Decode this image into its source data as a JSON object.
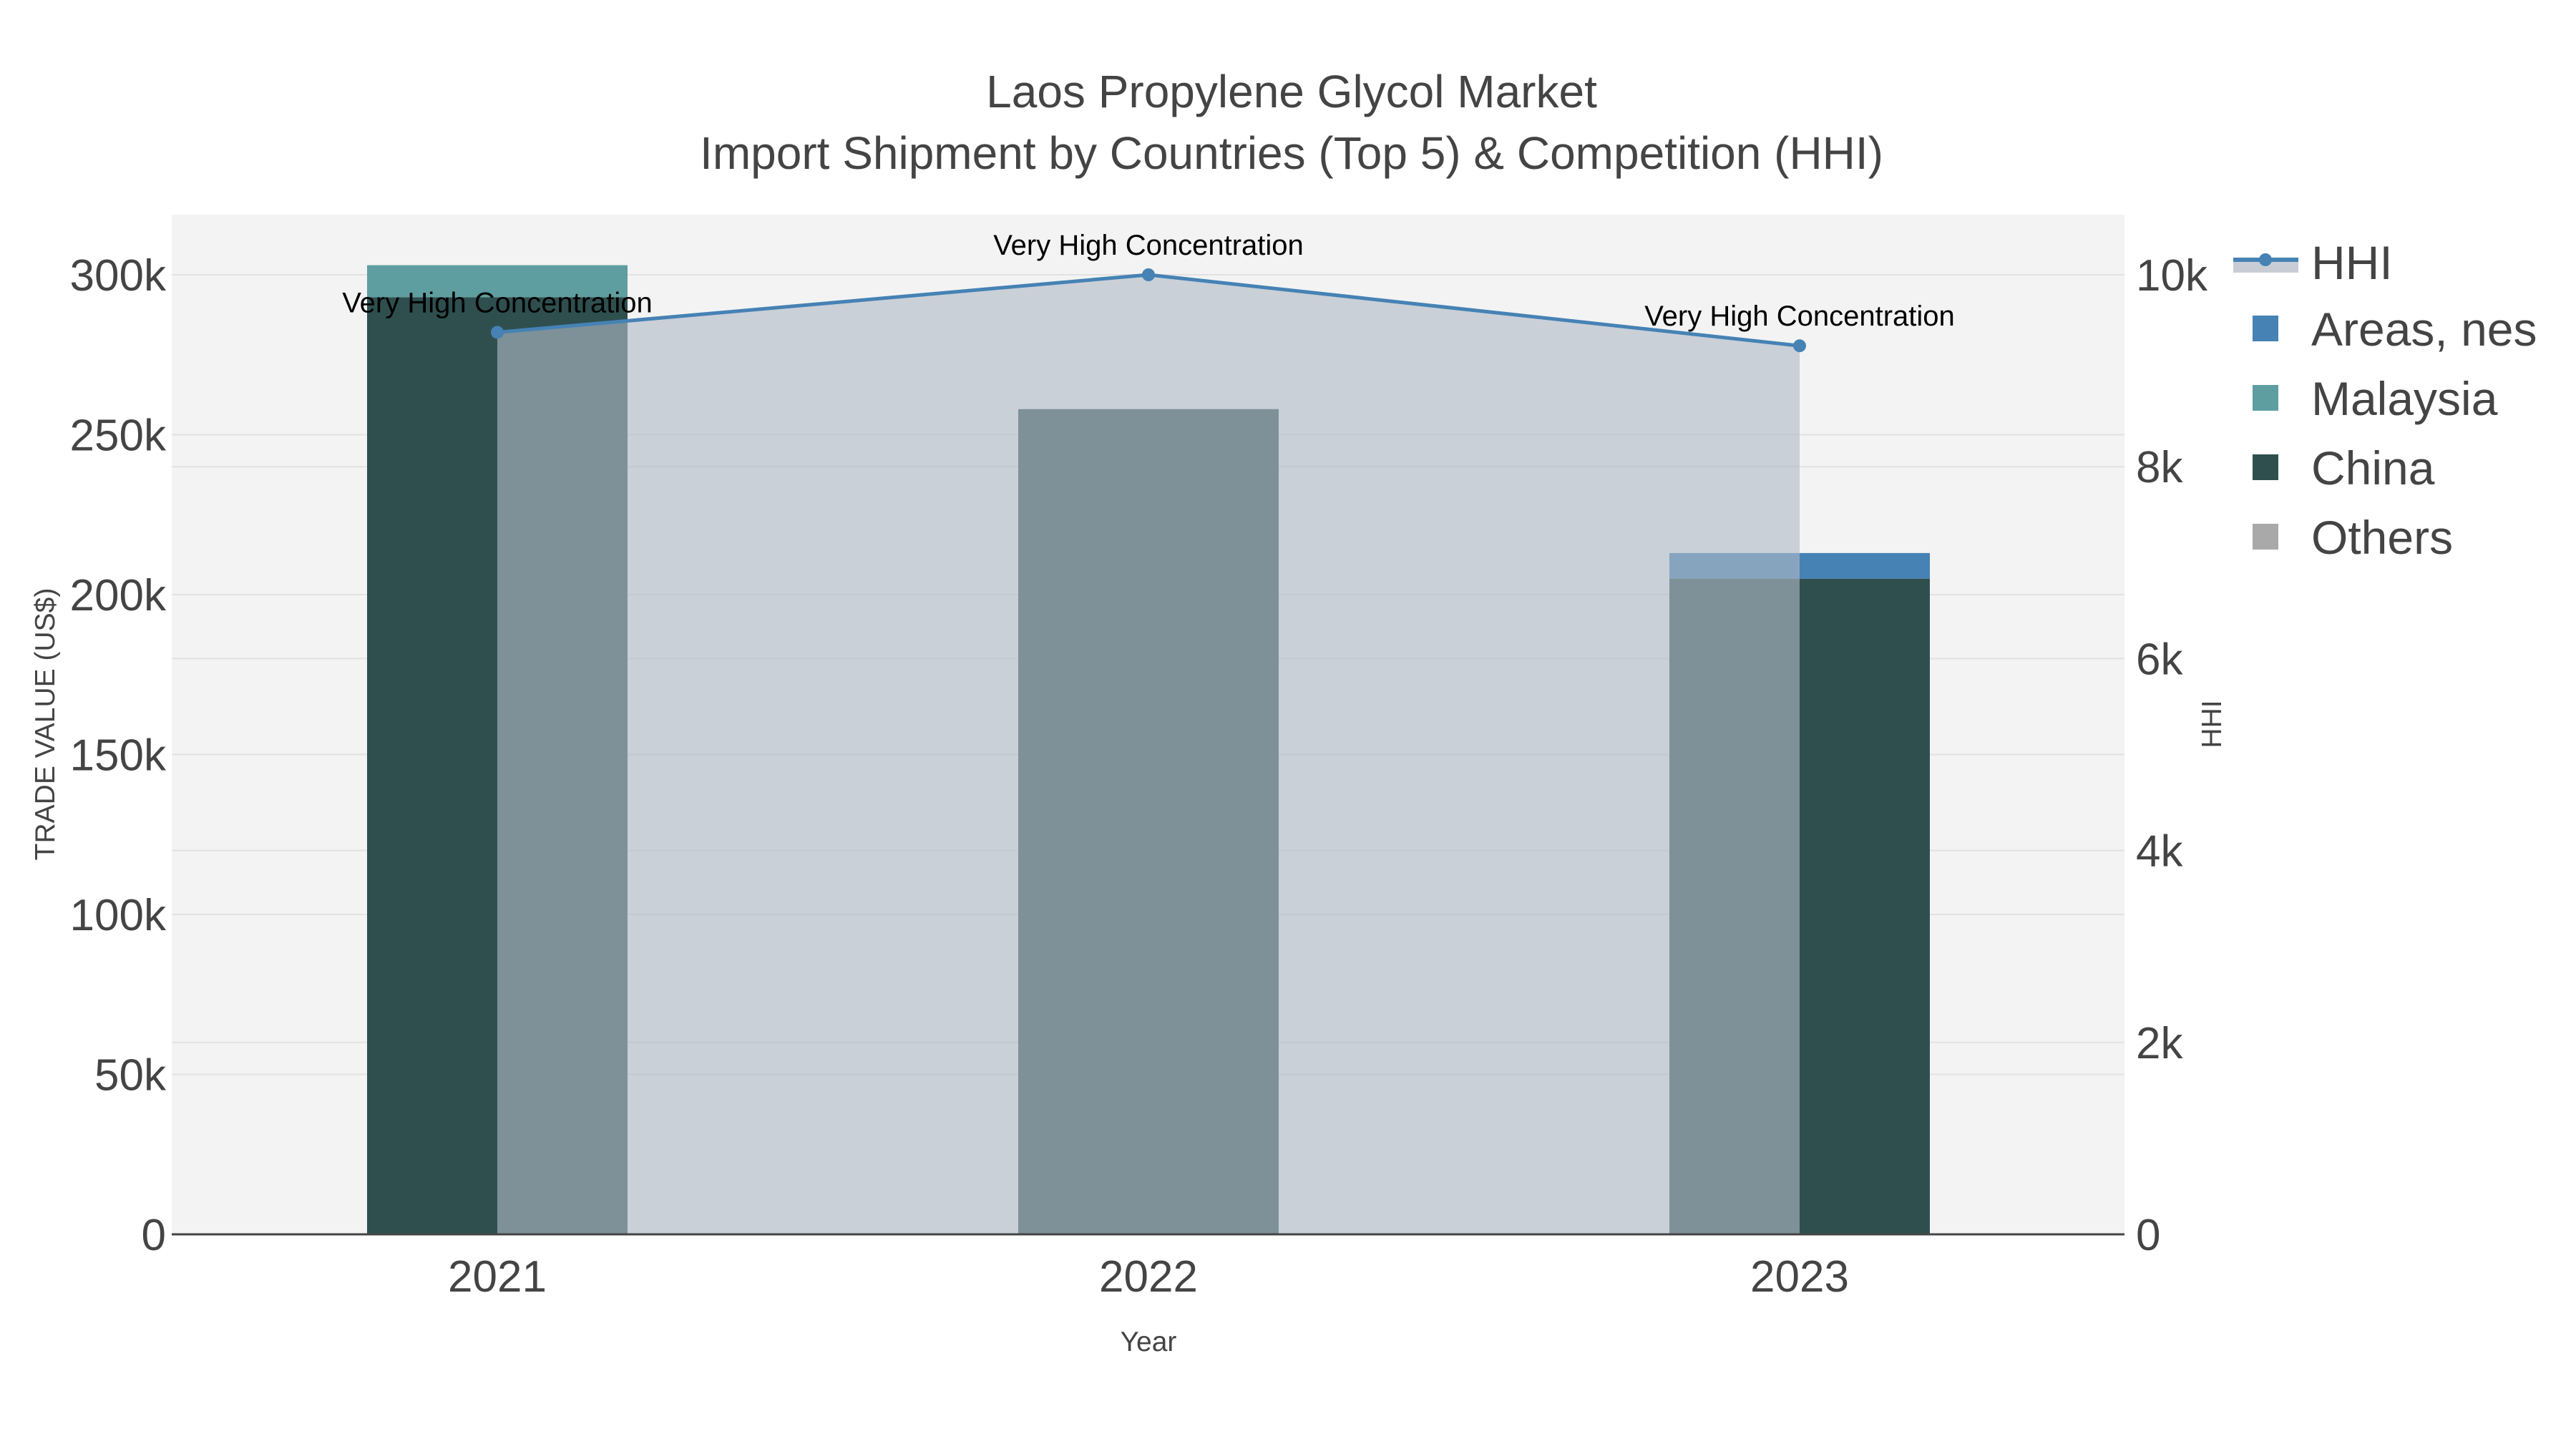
{
  "chart_data": {
    "type": "bar",
    "title": "Laos Propylene Glycol Market",
    "subtitle": "Import Shipment by Countries (Top 5) & Competition (HHI)",
    "xlabel": "Year",
    "ylabel": "TRADE VALUE (US$)",
    "y2label": "HHI",
    "categories": [
      "2021",
      "2022",
      "2023"
    ],
    "barmode": "stack",
    "series": [
      {
        "name": "China",
        "type": "bar",
        "color": "#2f4f4f",
        "values": [
          293000,
          258000,
          205000
        ]
      },
      {
        "name": "Malaysia",
        "type": "bar",
        "color": "#5f9ea0",
        "values": [
          10000,
          0,
          0
        ]
      },
      {
        "name": "Areas, nes",
        "type": "bar",
        "color": "#4682b4",
        "values": [
          0,
          0,
          8000
        ]
      },
      {
        "name": "Others",
        "type": "bar",
        "color": "#a9a9a9",
        "values": [
          0,
          0,
          0
        ]
      },
      {
        "name": "HHI",
        "type": "line+area",
        "axis": "y2",
        "color": "#4682b4",
        "fill": "rgba(176,185,198,0.6)",
        "values": [
          9400,
          10000,
          9260
        ]
      }
    ],
    "annotations": [
      {
        "x": "2021",
        "text": "Very High Concentration"
      },
      {
        "x": "2022",
        "text": "Very High Concentration"
      },
      {
        "x": "2023",
        "text": "Very High Concentration"
      }
    ],
    "ylim": [
      0,
      320000
    ],
    "y2lim": [
      0,
      10600
    ],
    "yticks": [
      "0",
      "50k",
      "100k",
      "150k",
      "200k",
      "250k",
      "300k"
    ],
    "y2ticks": [
      "0",
      "2k",
      "4k",
      "6k",
      "8k",
      "10k"
    ],
    "grid": true,
    "legend_position": "right"
  },
  "legend": {
    "items": [
      {
        "label": "HHI",
        "symbol": "line-marker-area",
        "color": "#4682b4"
      },
      {
        "label": "Areas, nes",
        "symbol": "square",
        "color": "#4682b4"
      },
      {
        "label": "Malaysia",
        "symbol": "square",
        "color": "#5f9ea0"
      },
      {
        "label": "China",
        "symbol": "square",
        "color": "#2f4f4f"
      },
      {
        "label": "Others",
        "symbol": "square",
        "color": "#a9a9a9"
      }
    ]
  },
  "colors": {
    "plot_bg": "#f3f3f3",
    "grid": "#e2e2e2",
    "text": "#444444",
    "area_fill": "#c8cdd5",
    "hhi_line": "#4682b4"
  }
}
